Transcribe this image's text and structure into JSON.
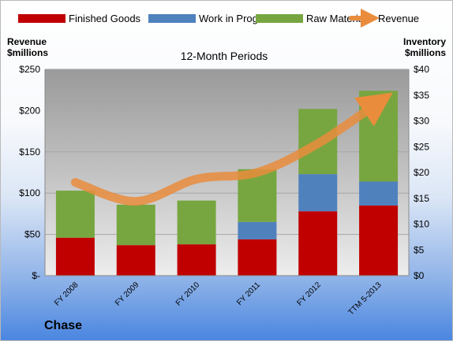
{
  "company": "Chase",
  "chart_data": {
    "type": "bar",
    "subtitle": "12-Month Periods",
    "categories": [
      "FY 2008",
      "FY 2009",
      "FY 2010",
      "FY 2011",
      "FY 2012",
      "TTM 5-2013"
    ],
    "stacked": true,
    "series": [
      {
        "name": "Finished Goods",
        "color": "#c00000",
        "values": [
          46,
          37,
          38,
          44,
          78,
          85
        ]
      },
      {
        "name": "Work in Progress",
        "color": "#4f81bd",
        "values": [
          0,
          0,
          0,
          21,
          45,
          29
        ]
      },
      {
        "name": "Raw Materials",
        "color": "#77a640",
        "values": [
          57,
          49,
          53,
          64,
          79,
          110
        ]
      }
    ],
    "line_series": {
      "name": "Revenue",
      "color": "#e98c3c",
      "axis": "left",
      "values": [
        113,
        90,
        117,
        125,
        160,
        210
      ]
    },
    "y_left": {
      "label_line1": "Revenue",
      "label_line2": "$millions",
      "range": [
        0,
        250
      ],
      "ticks": [
        0,
        50,
        100,
        150,
        200,
        250
      ],
      "tick_labels": [
        "$-",
        "$50",
        "$100",
        "$150",
        "$200",
        "$250"
      ]
    },
    "y_right": {
      "label_line1": "Inventory",
      "label_line2": "$millions",
      "range": [
        0,
        40
      ],
      "ticks": [
        0,
        5,
        10,
        15,
        20,
        25,
        30,
        35,
        40
      ],
      "tick_labels": [
        "$0",
        "$5",
        "$10",
        "$15",
        "$20",
        "$25",
        "$30",
        "$35",
        "$40"
      ]
    },
    "grid": true,
    "legend_position": "top"
  }
}
